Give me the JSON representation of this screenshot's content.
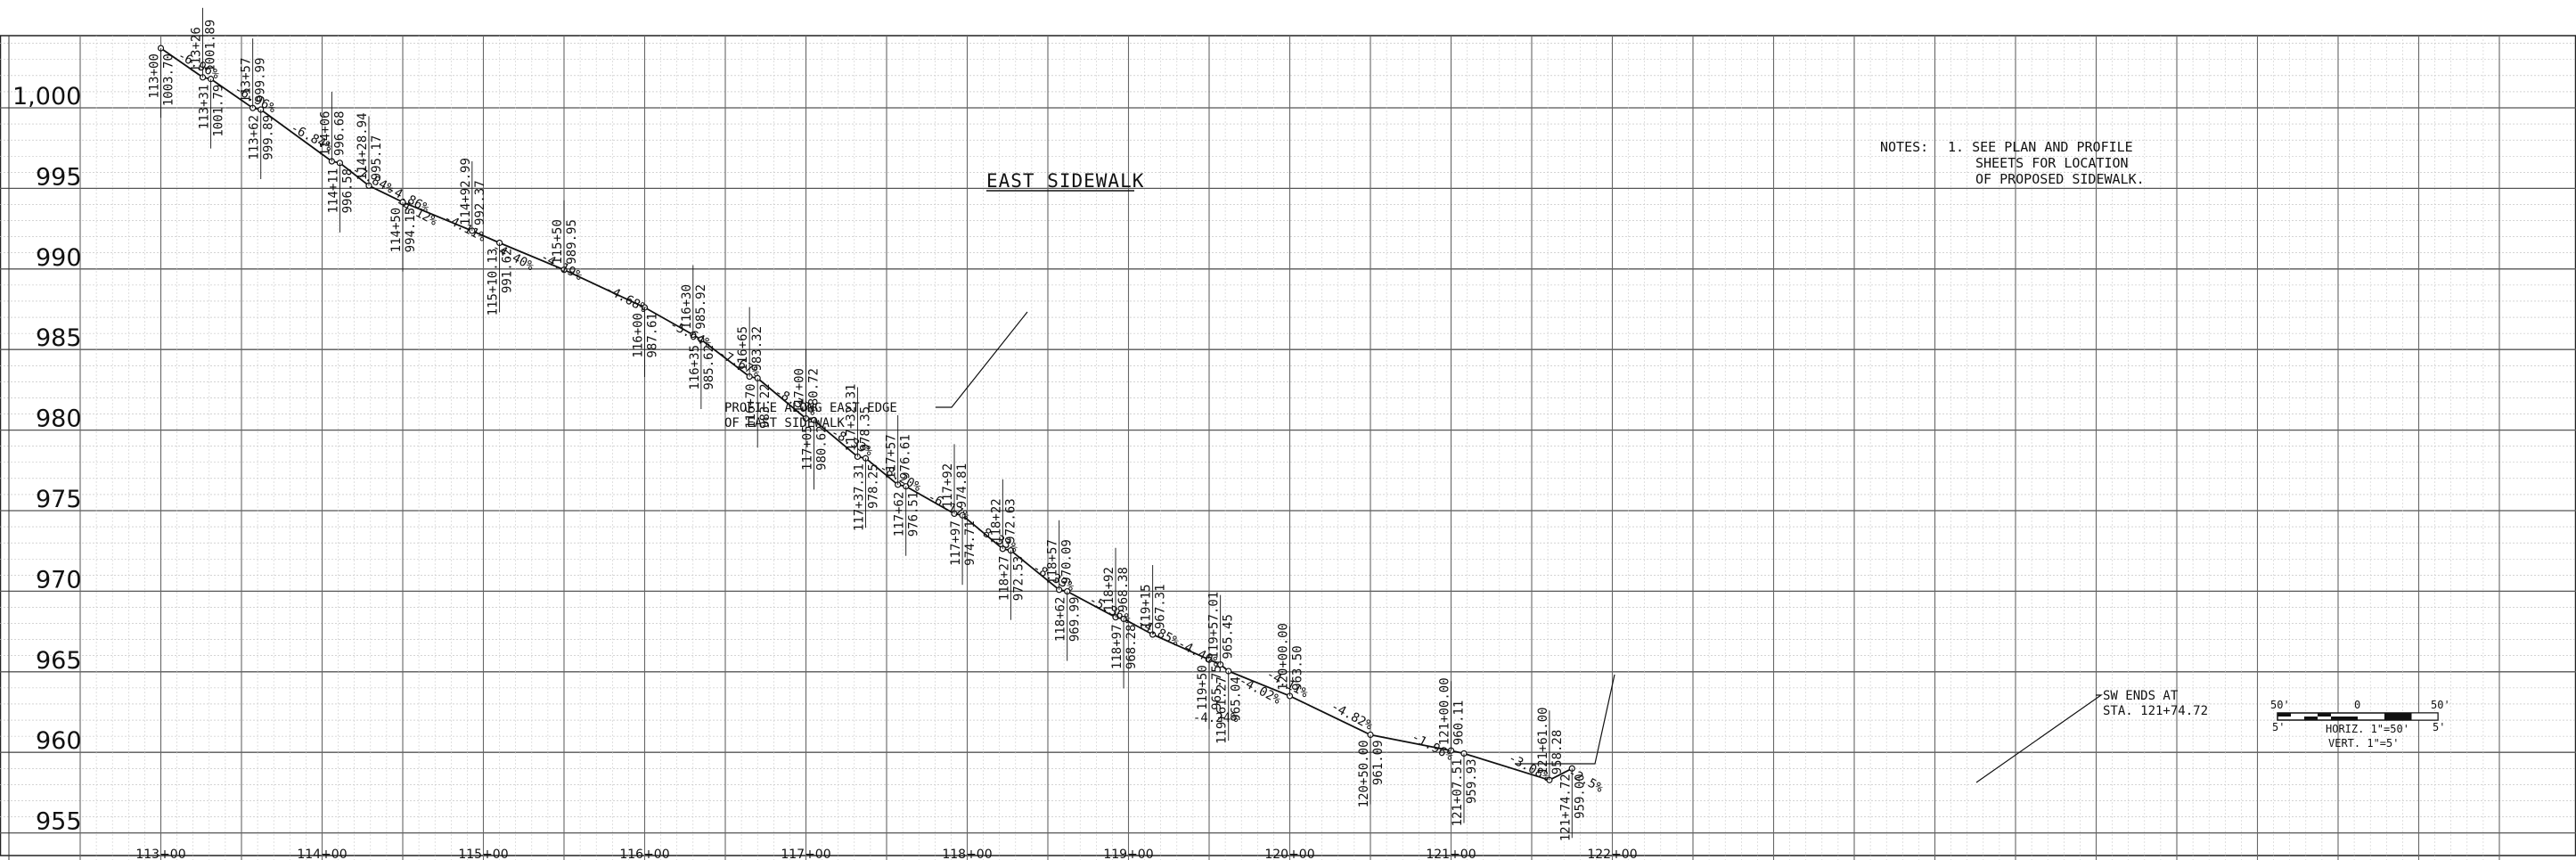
{
  "title": "EAST SIDEWALK",
  "profile_label": [
    "PROFILE ALONG EAST EDGE",
    "OF EAST SIDEWALK"
  ],
  "notes": {
    "label": "NOTES:",
    "lines": [
      "1. SEE PLAN AND PROFILE",
      "SHEETS FOR LOCATION",
      "OF PROPOSED SIDEWALK."
    ]
  },
  "end_note": [
    "SW ENDS AT",
    "STA. 121+74.72"
  ],
  "scale_bar": {
    "left_top": "50'",
    "left_bottom": "5'",
    "mid_top": "0",
    "right_top": "50'",
    "right_bottom": "5'",
    "horiz": "HORIZ.  1\"=50'",
    "vert": "VERT.  1\"=5'"
  },
  "y_axis": [
    "1,000",
    "995",
    "990",
    "985",
    "980",
    "975",
    "970",
    "965",
    "960",
    "955"
  ],
  "x_axis": [
    "113+00",
    "114+00",
    "115+00",
    "116+00",
    "117+00",
    "118+00",
    "119+00",
    "120+00",
    "121+00",
    "122+00"
  ],
  "profile_points": [
    {
      "sta": 113.0,
      "elev": 1003.7,
      "label": "113+00\n1003.70"
    },
    {
      "sta": 113.26,
      "elev": 1001.89,
      "label": "113+26\n1001.89"
    },
    {
      "sta": 113.31,
      "elev": 1001.79,
      "label": "113+31\n1001.79"
    },
    {
      "sta": 113.57,
      "elev": 999.99,
      "label": "113+57\n999.99"
    },
    {
      "sta": 113.62,
      "elev": 999.89,
      "label": "113+62\n999.89"
    },
    {
      "sta": 114.06,
      "elev": 996.68,
      "label": "114+06\n996.68"
    },
    {
      "sta": 114.11,
      "elev": 996.58,
      "label": "114+11\n996.58"
    },
    {
      "sta": 114.29,
      "elev": 995.17,
      "label": "114+28.94\n995.17"
    },
    {
      "sta": 114.5,
      "elev": 994.15,
      "label": "114+50\n994.15"
    },
    {
      "sta": 114.93,
      "elev": 992.37,
      "label": "114+92.99\n992.37"
    },
    {
      "sta": 115.1,
      "elev": 991.62,
      "label": "115+10.13\n991.62"
    },
    {
      "sta": 115.5,
      "elev": 989.95,
      "label": "115+50\n989.95"
    },
    {
      "sta": 116.0,
      "elev": 987.61,
      "label": "116+00\n987.61"
    },
    {
      "sta": 116.3,
      "elev": 985.92,
      "label": "116+30\n985.92"
    },
    {
      "sta": 116.35,
      "elev": 985.62,
      "label": "116+35\n985.62"
    },
    {
      "sta": 116.65,
      "elev": 983.32,
      "label": "116+65\n983.32"
    },
    {
      "sta": 116.7,
      "elev": 983.22,
      "label": "116+70\n983.22"
    },
    {
      "sta": 117.0,
      "elev": 980.72,
      "label": "117+00\n980.72"
    },
    {
      "sta": 117.05,
      "elev": 980.62,
      "label": "117+05\n980.62"
    },
    {
      "sta": 117.32,
      "elev": 978.35,
      "label": "117+32.31\n978.35"
    },
    {
      "sta": 117.37,
      "elev": 978.25,
      "label": "117+37.31\n978.25"
    },
    {
      "sta": 117.57,
      "elev": 976.61,
      "label": "117+57\n976.61"
    },
    {
      "sta": 117.62,
      "elev": 976.51,
      "label": "117+62\n976.51"
    },
    {
      "sta": 117.92,
      "elev": 974.81,
      "label": "117+92\n974.81"
    },
    {
      "sta": 117.97,
      "elev": 974.71,
      "label": "117+97\n974.71"
    },
    {
      "sta": 118.22,
      "elev": 972.63,
      "label": "118+22\n972.63"
    },
    {
      "sta": 118.27,
      "elev": 972.53,
      "label": "118+27\n972.53"
    },
    {
      "sta": 118.57,
      "elev": 970.09,
      "label": "118+57\n970.09"
    },
    {
      "sta": 118.62,
      "elev": 969.99,
      "label": "118+62\n969.99"
    },
    {
      "sta": 118.92,
      "elev": 968.38,
      "label": "118+92\n968.38"
    },
    {
      "sta": 118.97,
      "elev": 968.28,
      "label": "118+97\n968.28"
    },
    {
      "sta": 119.15,
      "elev": 967.31,
      "label": "119+15\n967.31"
    },
    {
      "sta": 119.5,
      "elev": 965.75,
      "label": "119+50\n965.75"
    },
    {
      "sta": 119.57,
      "elev": 965.45,
      "label": "119+57.01\n965.45"
    },
    {
      "sta": 119.62,
      "elev": 965.04,
      "label": "119+61.27\n965.04"
    },
    {
      "sta": 120.0,
      "elev": 963.5,
      "label": "120+00.00\n963.50"
    },
    {
      "sta": 120.5,
      "elev": 961.09,
      "label": "120+50.00\n961.09"
    },
    {
      "sta": 121.0,
      "elev": 960.11,
      "label": "121+00.00\n960.11"
    },
    {
      "sta": 121.08,
      "elev": 959.93,
      "label": "121+07.51\n959.93"
    },
    {
      "sta": 121.61,
      "elev": 958.28,
      "label": "121+61.00\n958.28"
    },
    {
      "sta": 121.75,
      "elev": 959.0,
      "label": "121+74.72\n959.00"
    }
  ],
  "grade_labels": [
    {
      "sta": 113.1,
      "elev": 1003.1,
      "text": "-6.96%"
    },
    {
      "sta": 113.45,
      "elev": 1001.0,
      "text": "-6.96%"
    },
    {
      "sta": 113.8,
      "elev": 998.6,
      "text": "-6.84%"
    },
    {
      "sta": 114.18,
      "elev": 996.0,
      "text": "-7.84%"
    },
    {
      "sta": 114.4,
      "elev": 994.8,
      "text": "-4.86%"
    },
    {
      "sta": 114.45,
      "elev": 994.0,
      "text": "-4.12%"
    },
    {
      "sta": 114.75,
      "elev": 993.0,
      "text": "-4.11%"
    },
    {
      "sta": 115.05,
      "elev": 991.2,
      "text": "-4.40%"
    },
    {
      "sta": 115.35,
      "elev": 990.6,
      "text": "-4.19%"
    },
    {
      "sta": 115.75,
      "elev": 988.6,
      "text": "-4.68%"
    },
    {
      "sta": 116.15,
      "elev": 986.4,
      "text": "-5.64%"
    },
    {
      "sta": 116.45,
      "elev": 984.6,
      "text": "-7.67%"
    },
    {
      "sta": 116.8,
      "elev": 982.2,
      "text": "-8.33%"
    },
    {
      "sta": 117.15,
      "elev": 979.7,
      "text": "-8.33%"
    },
    {
      "sta": 117.45,
      "elev": 977.5,
      "text": "-8.20%"
    },
    {
      "sta": 117.75,
      "elev": 975.7,
      "text": "-6.17%"
    },
    {
      "sta": 118.05,
      "elev": 973.7,
      "text": "-8.33%"
    },
    {
      "sta": 118.4,
      "elev": 971.3,
      "text": "-8.33%"
    },
    {
      "sta": 118.75,
      "elev": 969.3,
      "text": "-5.36%"
    },
    {
      "sta": 119.05,
      "elev": 967.9,
      "text": "-4.85%"
    },
    {
      "sta": 119.3,
      "elev": 966.6,
      "text": "-4.40%"
    },
    {
      "sta": 119.4,
      "elev": 961.9,
      "text": "-4.24%"
    },
    {
      "sta": 119.68,
      "elev": 964.3,
      "text": "-4.02%"
    },
    {
      "sta": 119.85,
      "elev": 964.7,
      "text": "-4.11%"
    },
    {
      "sta": 120.25,
      "elev": 962.7,
      "text": "-4.82%"
    },
    {
      "sta": 120.75,
      "elev": 960.8,
      "text": "-1.96%"
    },
    {
      "sta": 121.35,
      "elev": 959.5,
      "text": "-3.08%"
    },
    {
      "sta": 121.72,
      "elev": 958.6,
      "text": "-2.5%"
    }
  ]
}
